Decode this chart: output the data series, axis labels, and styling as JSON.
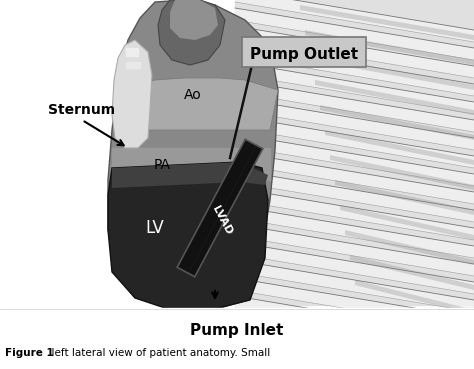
{
  "pump_outlet_label": "Pump Outlet",
  "pump_inlet_label": "Pump Inlet",
  "sternum_label": "Sternum",
  "ao_label": "Ao",
  "pa_label": "PA",
  "lv_label": "LV",
  "lvad_label": "LVAD",
  "bg_color": "#ffffff",
  "text_color": "#000000",
  "label_font_size": 9,
  "pump_label_font_size": 10,
  "caption_font_size": 7.5,
  "figure_label": "Figure 1",
  "caption_text": "  left lateral view of patient anatomy. Small"
}
